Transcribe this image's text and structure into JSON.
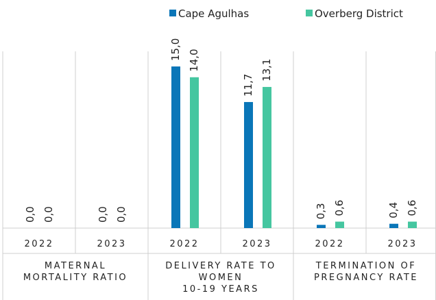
{
  "chart_data": {
    "type": "bar",
    "categories": [
      "2022",
      "2023",
      "2022",
      "2023",
      "2022",
      "2023"
    ],
    "groups": [
      [
        "MATERNAL",
        "MORTALITY RATIO"
      ],
      [
        "DELIVERY RATE TO",
        "WOMEN",
        "10-19 YEARS"
      ],
      [
        "TERMINATION OF",
        "PREGNANCY RATE"
      ]
    ],
    "series": [
      {
        "name": "Cape Agulhas",
        "color": "#0a76b8",
        "values": [
          0.0,
          0.0,
          15.0,
          11.7,
          0.3,
          0.4
        ],
        "value_labels": [
          "0,0",
          "0,0",
          "15,0",
          "11,7",
          "0,3",
          "0,4"
        ]
      },
      {
        "name": "Overberg District",
        "color": "#45c6a0",
        "values": [
          0.0,
          0.0,
          14.0,
          13.1,
          0.6,
          0.6
        ],
        "value_labels": [
          "0,0",
          "0,0",
          "14,0",
          "13,1",
          "0,6",
          "0,6"
        ]
      }
    ],
    "legend": "top"
  }
}
